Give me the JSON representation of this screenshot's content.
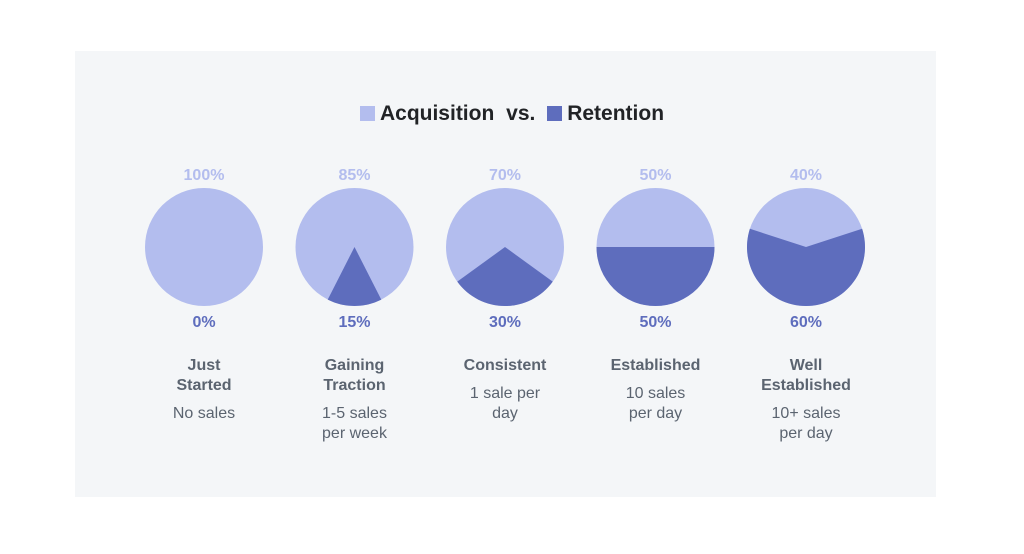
{
  "chart_data": {
    "type": "pie",
    "title_parts": {
      "acquisition": "Acquisition",
      "vs": "vs.",
      "retention": "Retention"
    },
    "series_colors": {
      "acquisition": "#b3bdee",
      "retention": "#5e6dbd"
    },
    "stages": [
      {
        "name": "Just Started",
        "desc": "No sales",
        "acquisition": 100,
        "retention": 0,
        "acq_label": "100%",
        "ret_label": "0%"
      },
      {
        "name": "Gaining Traction",
        "desc": "1-5 sales per week",
        "acquisition": 85,
        "retention": 15,
        "acq_label": "85%",
        "ret_label": "15%"
      },
      {
        "name": "Consistent",
        "desc": "1 sale per day",
        "acquisition": 70,
        "retention": 30,
        "acq_label": "70%",
        "ret_label": "30%"
      },
      {
        "name": "Established",
        "desc": "10 sales per day",
        "acquisition": 50,
        "retention": 50,
        "acq_label": "50%",
        "ret_label": "50%"
      },
      {
        "name": "Well Established",
        "desc": "10+ sales per day",
        "acquisition": 40,
        "retention": 60,
        "acq_label": "40%",
        "ret_label": "60%"
      }
    ]
  }
}
